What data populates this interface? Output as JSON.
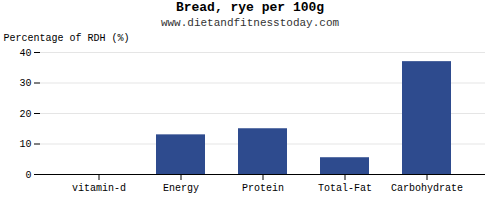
{
  "chart_data": {
    "type": "bar",
    "title": "Bread, rye per 100g",
    "subtitle": "www.dietandfitnesstoday.com",
    "categories": [
      "vitamin-d",
      "Energy",
      "Protein",
      "Total-Fat",
      "Carbohydrate"
    ],
    "values": [
      0,
      13,
      15,
      5.5,
      37
    ],
    "color": "#2e4b8e",
    "ylabel": "Percentage of RDH (%)",
    "ylim": [
      0,
      40
    ],
    "yticks": [
      0,
      10,
      20,
      30,
      40
    ],
    "grid": true
  }
}
